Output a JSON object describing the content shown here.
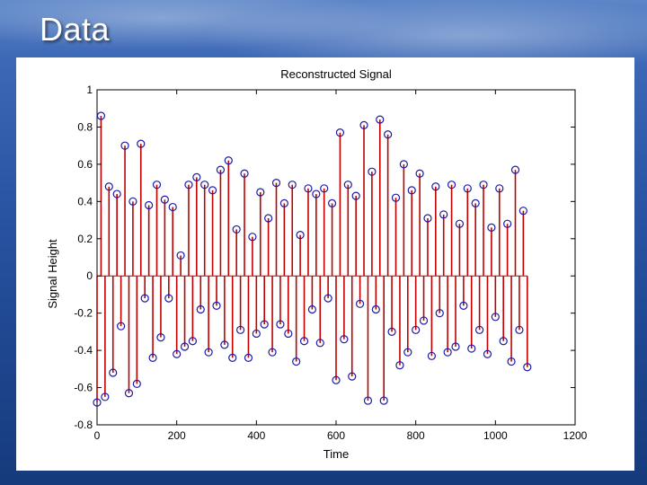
{
  "slide": {
    "title": "Data"
  },
  "colors": {
    "stem": "#c00000",
    "marker": "#1a1aa8"
  },
  "chart_data": {
    "type": "scatter",
    "style": "stem plot, blue circle markers, red stems",
    "title": "Reconstructed Signal",
    "xlabel": "Time",
    "ylabel": "Signal Height",
    "xlim": [
      0,
      1200
    ],
    "ylim": [
      -0.8,
      1
    ],
    "xticks": [
      0,
      200,
      400,
      600,
      800,
      1000,
      1200
    ],
    "yticks": [
      1,
      0.8,
      0.6,
      0.4,
      0.2,
      0,
      -0.2,
      -0.4,
      -0.6,
      -0.8
    ],
    "grid": false,
    "x": [
      0,
      10,
      20,
      30,
      40,
      50,
      60,
      70,
      80,
      90,
      100,
      110,
      120,
      130,
      140,
      150,
      160,
      170,
      180,
      190,
      200,
      210,
      220,
      230,
      240,
      250,
      260,
      270,
      280,
      290,
      300,
      310,
      320,
      330,
      340,
      350,
      360,
      370,
      380,
      390,
      400,
      410,
      420,
      430,
      440,
      450,
      460,
      470,
      480,
      490,
      500,
      510,
      520,
      530,
      540,
      550,
      560,
      570,
      580,
      590,
      600,
      610,
      620,
      630,
      640,
      650,
      660,
      670,
      680,
      690,
      700,
      710,
      720,
      730,
      740,
      750,
      760,
      770,
      780,
      790,
      800,
      810,
      820,
      830,
      840,
      850,
      860,
      870,
      880,
      890,
      900,
      910,
      920,
      930,
      940,
      950,
      960,
      970,
      980,
      990,
      1000,
      1010,
      1020,
      1030,
      1040,
      1050,
      1060,
      1070,
      1080
    ],
    "y": [
      -0.68,
      0.86,
      -0.65,
      0.48,
      -0.52,
      0.44,
      -0.27,
      0.7,
      -0.63,
      0.4,
      -0.58,
      0.71,
      -0.12,
      0.38,
      -0.44,
      0.49,
      -0.33,
      0.41,
      -0.12,
      0.37,
      -0.42,
      0.11,
      -0.38,
      0.49,
      -0.35,
      0.53,
      -0.18,
      0.49,
      -0.41,
      0.46,
      -0.16,
      0.57,
      -0.37,
      0.62,
      -0.44,
      0.25,
      -0.29,
      0.55,
      -0.44,
      0.21,
      -0.31,
      0.45,
      -0.26,
      0.31,
      -0.41,
      0.5,
      -0.26,
      0.39,
      -0.31,
      0.49,
      -0.46,
      0.22,
      -0.35,
      0.47,
      -0.18,
      0.44,
      -0.36,
      0.47,
      -0.12,
      0.39,
      -0.56,
      0.77,
      -0.34,
      0.49,
      -0.54,
      0.43,
      -0.15,
      0.81,
      -0.67,
      0.56,
      -0.18,
      0.84,
      -0.67,
      0.76,
      -0.3,
      0.42,
      -0.48,
      0.6,
      -0.41,
      0.46,
      -0.29,
      0.55,
      -0.24,
      0.31,
      -0.43,
      0.48,
      -0.2,
      0.33,
      -0.41,
      0.49,
      -0.38,
      0.28,
      -0.16,
      0.47,
      -0.39,
      0.39,
      -0.29,
      0.49,
      -0.42,
      0.26,
      -0.22,
      0.47,
      -0.35,
      0.28,
      -0.46,
      0.57,
      -0.29,
      0.35,
      -0.49
    ]
  }
}
